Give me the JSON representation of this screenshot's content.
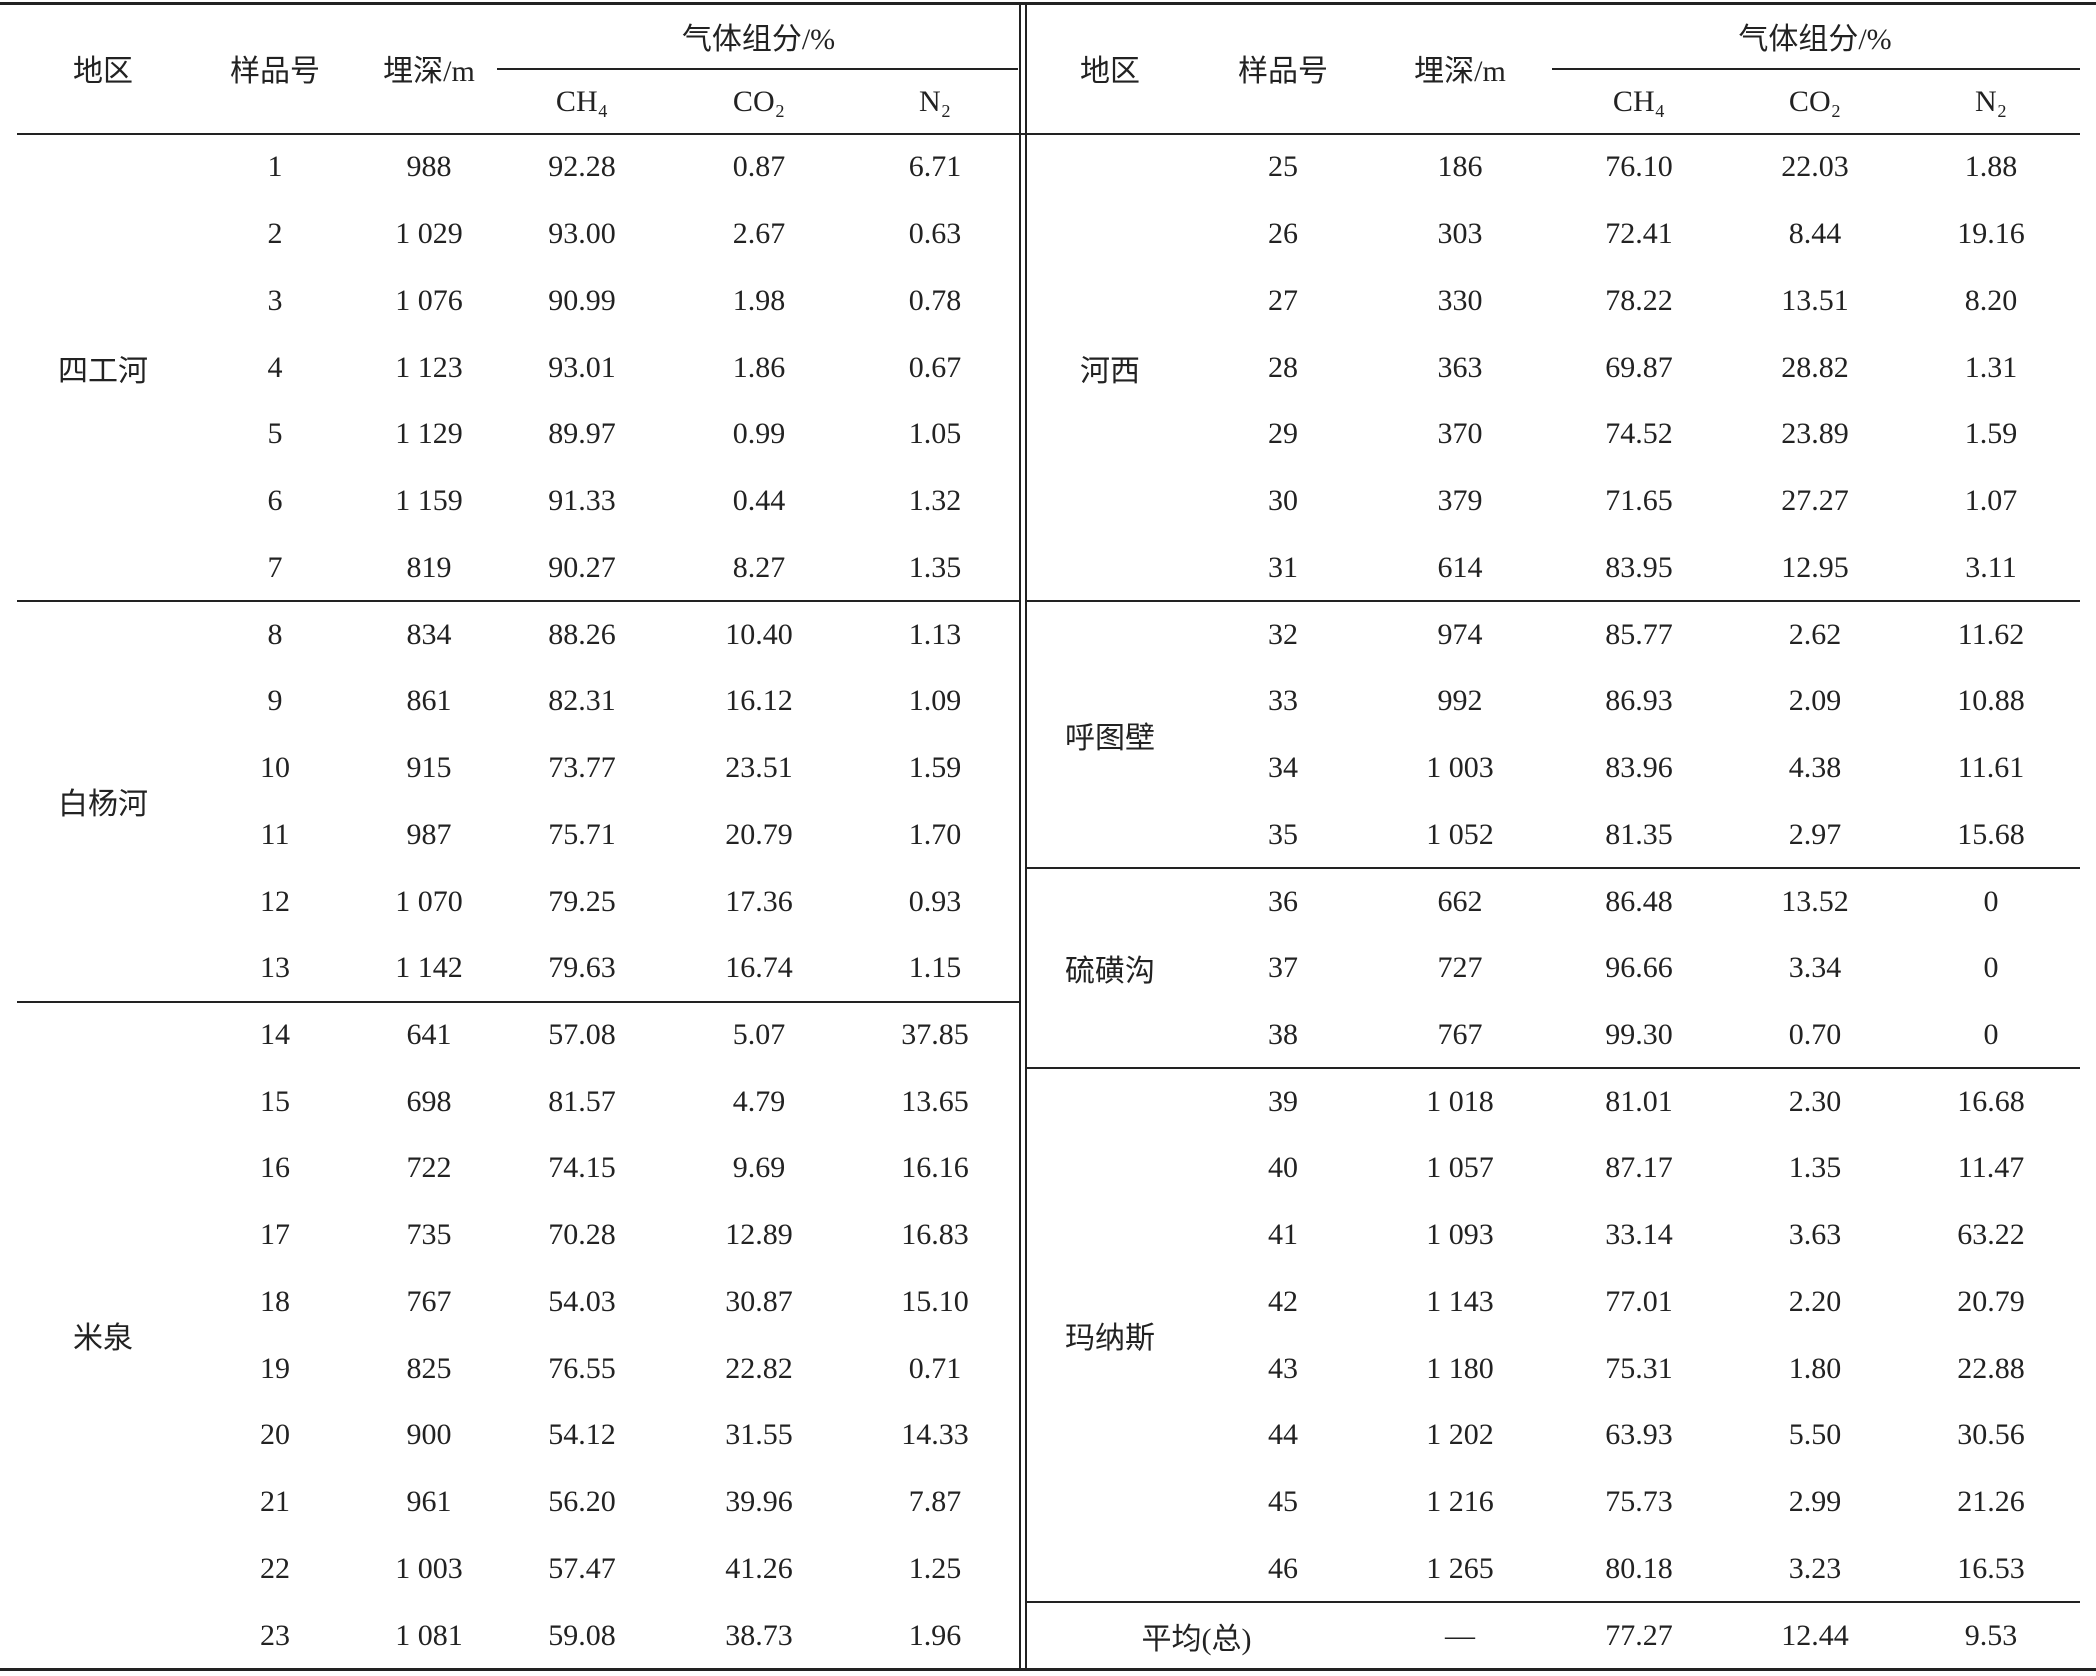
{
  "header": {
    "region": "地区",
    "sample": "样品号",
    "depth": "埋深/m",
    "gas": "气体组分/%",
    "ch4": "CH₄",
    "co2": "CO₂",
    "n2": "N₂"
  },
  "left": {
    "groups": [
      {
        "region": "四工河",
        "rows": [
          [
            "1",
            "988",
            "92.28",
            "0.87",
            "6.71"
          ],
          [
            "2",
            "1 029",
            "93.00",
            "2.67",
            "0.63"
          ],
          [
            "3",
            "1 076",
            "90.99",
            "1.98",
            "0.78"
          ],
          [
            "4",
            "1 123",
            "93.01",
            "1.86",
            "0.67"
          ],
          [
            "5",
            "1 129",
            "89.97",
            "0.99",
            "1.05"
          ],
          [
            "6",
            "1 159",
            "91.33",
            "0.44",
            "1.32"
          ],
          [
            "7",
            "819",
            "90.27",
            "8.27",
            "1.35"
          ]
        ]
      },
      {
        "region": "白杨河",
        "rows": [
          [
            "8",
            "834",
            "88.26",
            "10.40",
            "1.13"
          ],
          [
            "9",
            "861",
            "82.31",
            "16.12",
            "1.09"
          ],
          [
            "10",
            "915",
            "73.77",
            "23.51",
            "1.59"
          ],
          [
            "11",
            "987",
            "75.71",
            "20.79",
            "1.70"
          ],
          [
            "12",
            "1 070",
            "79.25",
            "17.36",
            "0.93"
          ],
          [
            "13",
            "1 142",
            "79.63",
            "16.74",
            "1.15"
          ]
        ]
      },
      {
        "region": "米泉",
        "rows": [
          [
            "14",
            "641",
            "57.08",
            "5.07",
            "37.85"
          ],
          [
            "15",
            "698",
            "81.57",
            "4.79",
            "13.65"
          ],
          [
            "16",
            "722",
            "74.15",
            "9.69",
            "16.16"
          ],
          [
            "17",
            "735",
            "70.28",
            "12.89",
            "16.83"
          ],
          [
            "18",
            "767",
            "54.03",
            "30.87",
            "15.10"
          ],
          [
            "19",
            "825",
            "76.55",
            "22.82",
            "0.71"
          ],
          [
            "20",
            "900",
            "54.12",
            "31.55",
            "14.33"
          ],
          [
            "21",
            "961",
            "56.20",
            "39.96",
            "7.87"
          ],
          [
            "22",
            "1 003",
            "57.47",
            "41.26",
            "1.25"
          ],
          [
            "23",
            "1 081",
            "59.08",
            "38.73",
            "1.96"
          ]
        ]
      }
    ]
  },
  "right": {
    "groups": [
      {
        "region": "河西",
        "rows": [
          [
            "25",
            "186",
            "76.10",
            "22.03",
            "1.88"
          ],
          [
            "26",
            "303",
            "72.41",
            "8.44",
            "19.16"
          ],
          [
            "27",
            "330",
            "78.22",
            "13.51",
            "8.20"
          ],
          [
            "28",
            "363",
            "69.87",
            "28.82",
            "1.31"
          ],
          [
            "29",
            "370",
            "74.52",
            "23.89",
            "1.59"
          ],
          [
            "30",
            "379",
            "71.65",
            "27.27",
            "1.07"
          ],
          [
            "31",
            "614",
            "83.95",
            "12.95",
            "3.11"
          ]
        ]
      },
      {
        "region": "呼图壁",
        "rows": [
          [
            "32",
            "974",
            "85.77",
            "2.62",
            "11.62"
          ],
          [
            "33",
            "992",
            "86.93",
            "2.09",
            "10.88"
          ],
          [
            "34",
            "1 003",
            "83.96",
            "4.38",
            "11.61"
          ],
          [
            "35",
            "1 052",
            "81.35",
            "2.97",
            "15.68"
          ]
        ]
      },
      {
        "region": "硫磺沟",
        "rows": [
          [
            "36",
            "662",
            "86.48",
            "13.52",
            "0"
          ],
          [
            "37",
            "727",
            "96.66",
            "3.34",
            "0"
          ],
          [
            "38",
            "767",
            "99.30",
            "0.70",
            "0"
          ]
        ]
      },
      {
        "region": "玛纳斯",
        "rows": [
          [
            "39",
            "1 018",
            "81.01",
            "2.30",
            "16.68"
          ],
          [
            "40",
            "1 057",
            "87.17",
            "1.35",
            "11.47"
          ],
          [
            "41",
            "1 093",
            "33.14",
            "3.63",
            "63.22"
          ],
          [
            "42",
            "1 143",
            "77.01",
            "2.20",
            "20.79"
          ],
          [
            "43",
            "1 180",
            "75.31",
            "1.80",
            "22.88"
          ],
          [
            "44",
            "1 202",
            "63.93",
            "5.50",
            "30.56"
          ],
          [
            "45",
            "1 216",
            "75.73",
            "2.99",
            "21.26"
          ],
          [
            "46",
            "1 265",
            "80.18",
            "3.23",
            "16.53"
          ]
        ]
      }
    ],
    "average": {
      "label": "平均(总)",
      "depth": "—",
      "ch4": "77.27",
      "co2": "12.44",
      "n2": "9.53"
    }
  }
}
